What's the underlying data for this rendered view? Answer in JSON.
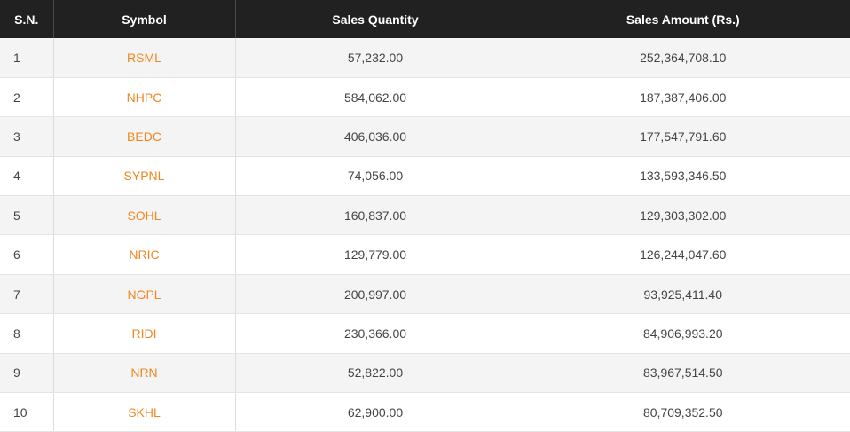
{
  "table": {
    "headers": {
      "sn": "S.N.",
      "symbol": "Symbol",
      "sales_quantity": "Sales Quantity",
      "sales_amount": "Sales Amount (Rs.)"
    },
    "rows": [
      {
        "sn": "1",
        "symbol": "RSML",
        "qty": "57,232.00",
        "amount": "252,364,708.10"
      },
      {
        "sn": "2",
        "symbol": "NHPC",
        "qty": "584,062.00",
        "amount": "187,387,406.00"
      },
      {
        "sn": "3",
        "symbol": "BEDC",
        "qty": "406,036.00",
        "amount": "177,547,791.60"
      },
      {
        "sn": "4",
        "symbol": "SYPNL",
        "qty": "74,056.00",
        "amount": "133,593,346.50"
      },
      {
        "sn": "5",
        "symbol": "SOHL",
        "qty": "160,837.00",
        "amount": "129,303,302.00"
      },
      {
        "sn": "6",
        "symbol": "NRIC",
        "qty": "129,779.00",
        "amount": "126,244,047.60"
      },
      {
        "sn": "7",
        "symbol": "NGPL",
        "qty": "200,997.00",
        "amount": "93,925,411.40"
      },
      {
        "sn": "8",
        "symbol": "RIDI",
        "qty": "230,366.00",
        "amount": "84,906,993.20"
      },
      {
        "sn": "9",
        "symbol": "NRN",
        "qty": "52,822.00",
        "amount": "83,967,514.50"
      },
      {
        "sn": "10",
        "symbol": "SKHL",
        "qty": "62,900.00",
        "amount": "80,709,352.50"
      }
    ]
  },
  "colors": {
    "header_bg": "#212121",
    "symbol_link": "#f0861e",
    "row_stripe": "#f4f4f4"
  }
}
